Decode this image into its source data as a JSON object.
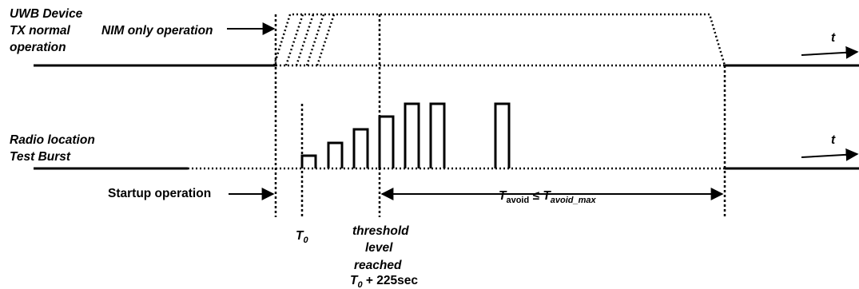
{
  "labels": {
    "uwb_line1": "UWB Device",
    "uwb_line2": "TX normal",
    "uwb_line3": "operation",
    "nim_only": "NIM only operation",
    "radio_line1": "Radio location",
    "radio_line2": "Test Burst",
    "startup": "Startup operation",
    "t_axis": "t",
    "t0_main": "T",
    "t0_sub": "0",
    "threshold_line1": "threshold",
    "threshold_line2": "level",
    "threshold_line3": "reached",
    "threshold_time_main": "T",
    "threshold_time_sub": "0",
    "threshold_time_rest": " + 225sec",
    "tavoid_main": "T",
    "tavoid_sub": "avoid",
    "tavoid_leq": " ≤ ",
    "tavoid_max_main": "T",
    "tavoid_max_sub": "avoid_max"
  }
}
